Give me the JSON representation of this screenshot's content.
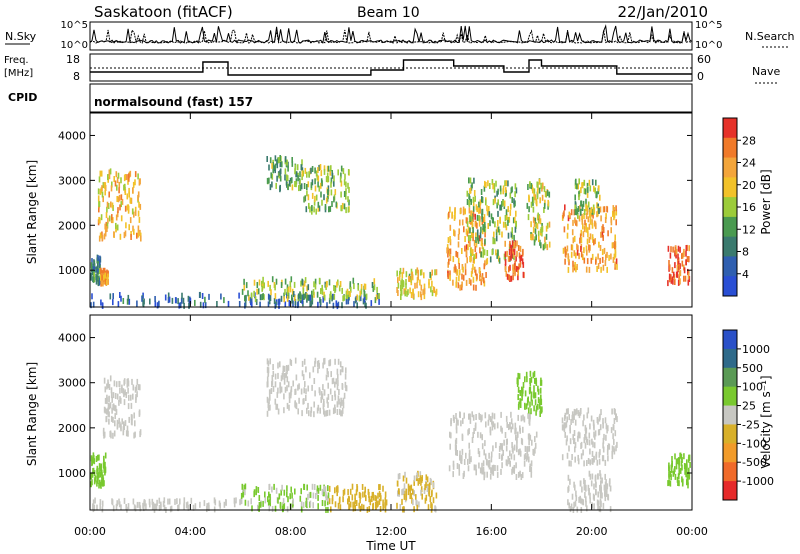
{
  "header": {
    "station": "Saskatoon (fitACF)",
    "beam": "Beam 10",
    "date": "22/Jan/2010"
  },
  "strip_labels": {
    "nsky": "N.Sky",
    "nsky_ticks": [
      "10^5",
      "10^0"
    ],
    "nsearch": "N.Search",
    "nsearch_ticks": [
      "10^5",
      "10^0"
    ],
    "freq_line1": "Freq.",
    "freq_line2": "[MHz]",
    "freq_ticks": [
      "18",
      "8"
    ],
    "nave": "Nave",
    "nave_ticks": [
      "60",
      "0"
    ],
    "cpid": "CPID",
    "cpid_value": "normalsound (fast) 157"
  },
  "axes": {
    "ylabel": "Slant Range [km]",
    "xlabel": "Time UT",
    "yticks": [
      "1000",
      "2000",
      "3000",
      "4000"
    ],
    "xticks": [
      "00:00",
      "04:00",
      "08:00",
      "12:00",
      "16:00",
      "20:00",
      "00:00"
    ]
  },
  "colors": {
    "power_scale": [
      "#2a4fd4",
      "#2f5fb0",
      "#3a7a6e",
      "#4a9a50",
      "#9ccc3a",
      "#f2c22a",
      "#f3a53b",
      "#f07a2a",
      "#e6322a"
    ],
    "velocity_scale": [
      "#2a50c8",
      "#2f6a8a",
      "#5a9a55",
      "#79c92f",
      "#c7c7c2",
      "#d8b02a",
      "#f19b2a",
      "#f06a2a",
      "#e62a2a"
    ]
  },
  "chart_data": [
    {
      "type": "heatmap",
      "name": "power_panel",
      "xlabel": "Time UT",
      "ylabel": "Slant Range [km]",
      "xlim_hours": [
        0,
        24
      ],
      "ylim_km": [
        180,
        4500
      ],
      "colorbar_label": "Power [dB]",
      "colorbar_ticks": [
        "28",
        "24",
        "20",
        "16",
        "12",
        "8",
        "4"
      ],
      "colorbar_range": [
        0,
        30
      ],
      "regions": [
        {
          "t0": 0.0,
          "t1": 0.4,
          "r0": 700,
          "r1": 1300,
          "value": 10
        },
        {
          "t0": 0.4,
          "t1": 0.7,
          "r0": 700,
          "r1": 1000,
          "value": 22
        },
        {
          "t0": 0.3,
          "t1": 2.0,
          "r0": 1700,
          "r1": 3200,
          "value": 20
        },
        {
          "t0": 0.0,
          "t1": 11.5,
          "r0": 200,
          "r1": 450,
          "value": 6
        },
        {
          "t0": 6.0,
          "t1": 11.5,
          "r0": 350,
          "r1": 800,
          "value": 14
        },
        {
          "t0": 7.0,
          "t1": 8.5,
          "r0": 2800,
          "r1": 3500,
          "value": 12
        },
        {
          "t0": 8.5,
          "t1": 10.3,
          "r0": 2300,
          "r1": 3300,
          "value": 14
        },
        {
          "t0": 12.2,
          "t1": 13.8,
          "r0": 400,
          "r1": 1000,
          "value": 18
        },
        {
          "t0": 14.2,
          "t1": 15.8,
          "r0": 600,
          "r1": 2400,
          "value": 22
        },
        {
          "t0": 15.0,
          "t1": 17.0,
          "r0": 1200,
          "r1": 3000,
          "value": 14
        },
        {
          "t0": 16.5,
          "t1": 17.3,
          "r0": 800,
          "r1": 1600,
          "value": 26
        },
        {
          "t0": 17.4,
          "t1": 18.3,
          "r0": 1500,
          "r1": 3000,
          "value": 16
        },
        {
          "t0": 18.8,
          "t1": 21.0,
          "r0": 1000,
          "r1": 2400,
          "value": 22
        },
        {
          "t0": 19.3,
          "t1": 20.3,
          "r0": 2200,
          "r1": 3000,
          "value": 14
        },
        {
          "t0": 23.0,
          "t1": 23.9,
          "r0": 700,
          "r1": 1500,
          "value": 26
        }
      ]
    },
    {
      "type": "heatmap",
      "name": "velocity_panel",
      "xlabel": "Time UT",
      "ylabel": "Slant Range [km]",
      "xlim_hours": [
        0,
        24
      ],
      "ylim_km": [
        180,
        4500
      ],
      "colorbar_label": "Velocity [m s⁻¹]",
      "colorbar_ticks": [
        "1000",
        "500",
        "100",
        "25",
        "-25",
        "-100",
        "-500",
        "-1000"
      ],
      "colorbar_range": [
        -1000,
        1000
      ],
      "regions": [
        {
          "t0": 0.0,
          "t1": 0.6,
          "r0": 700,
          "r1": 1400,
          "value": 150
        },
        {
          "t0": 0.5,
          "t1": 2.0,
          "r0": 1800,
          "r1": 3100,
          "value": 0
        },
        {
          "t0": 0.0,
          "t1": 6.0,
          "r0": 180,
          "r1": 400,
          "value": 0
        },
        {
          "t0": 6.0,
          "t1": 9.5,
          "r0": 180,
          "r1": 700,
          "value": 120
        },
        {
          "t0": 9.5,
          "t1": 11.8,
          "r0": 180,
          "r1": 700,
          "value": -150
        },
        {
          "t0": 7.0,
          "t1": 10.2,
          "r0": 2300,
          "r1": 3500,
          "value": 0
        },
        {
          "t0": 12.2,
          "t1": 13.8,
          "r0": 180,
          "r1": 1000,
          "value": -120
        },
        {
          "t0": 14.3,
          "t1": 17.8,
          "r0": 900,
          "r1": 2300,
          "value": 0
        },
        {
          "t0": 17.0,
          "t1": 18.0,
          "r0": 2300,
          "r1": 3200,
          "value": 300
        },
        {
          "t0": 18.8,
          "t1": 21.0,
          "r0": 1200,
          "r1": 2400,
          "value": 0
        },
        {
          "t0": 19.0,
          "t1": 20.8,
          "r0": 180,
          "r1": 1000,
          "value": 0
        },
        {
          "t0": 23.0,
          "t1": 23.9,
          "r0": 700,
          "r1": 1400,
          "value": 150
        }
      ]
    }
  ]
}
